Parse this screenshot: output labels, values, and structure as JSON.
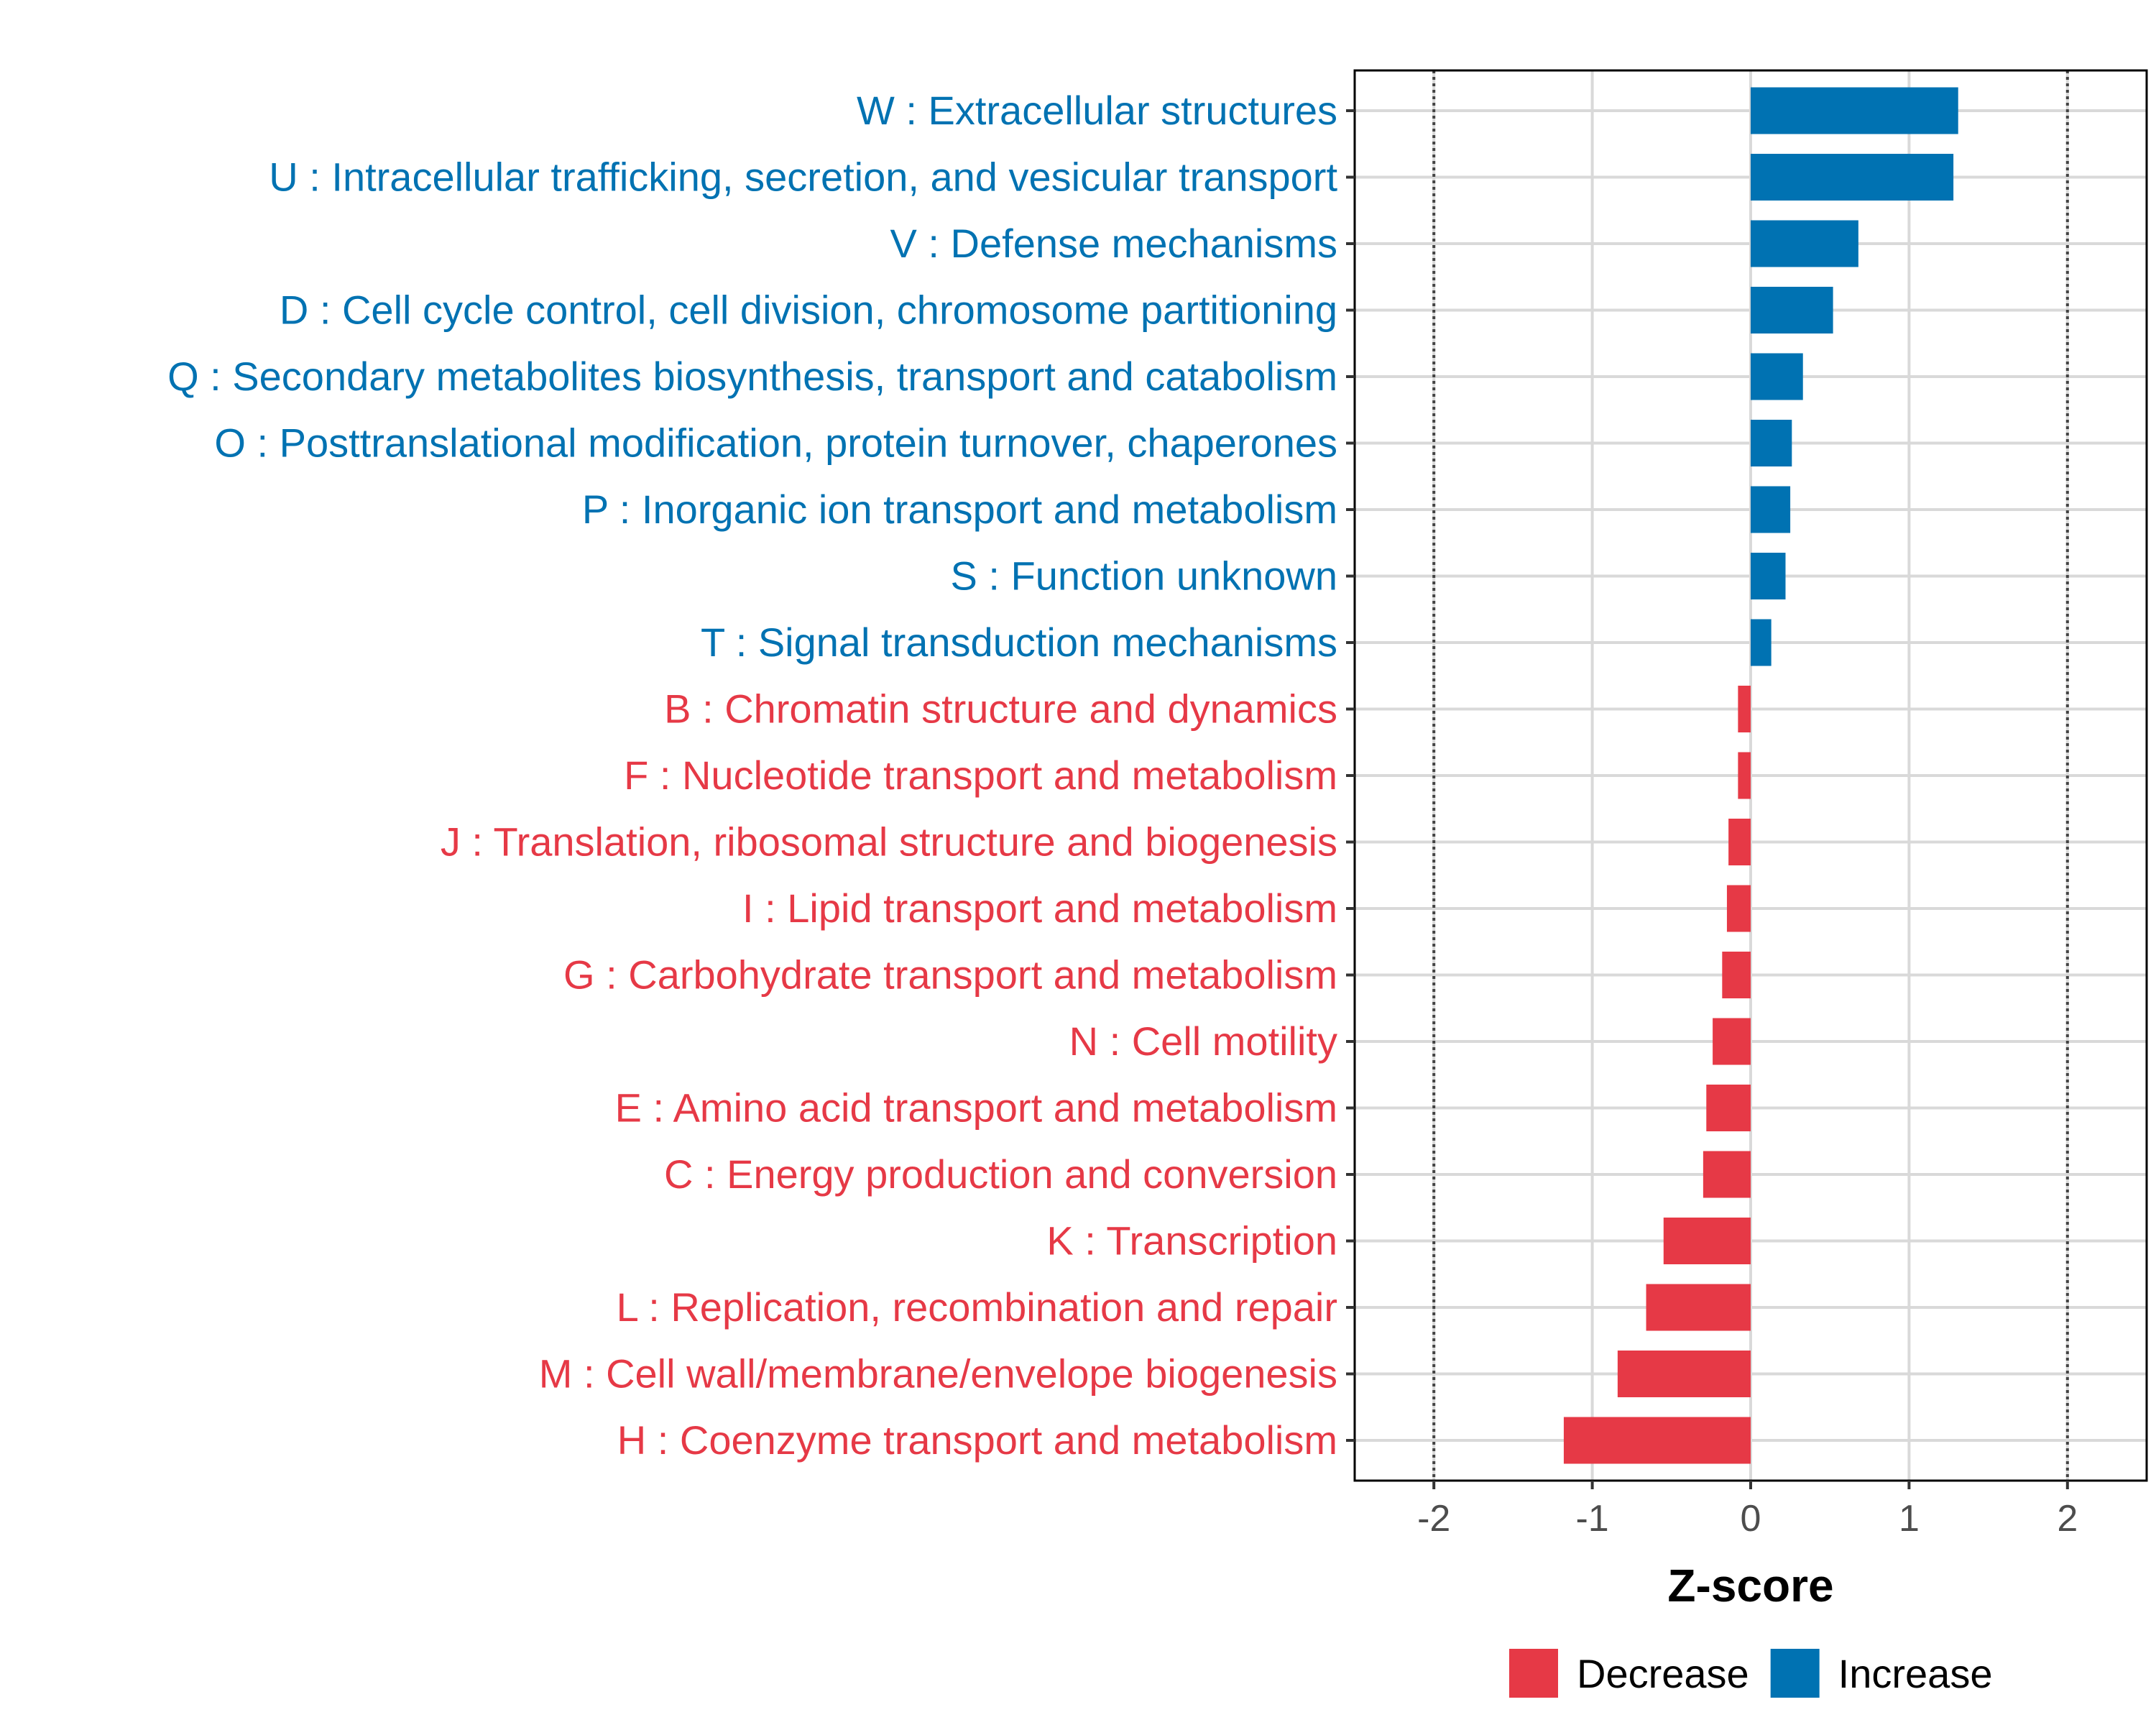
{
  "chart_data": {
    "type": "bar",
    "orientation": "horizontal",
    "title": "",
    "xlabel": "Z-score",
    "ylabel": "",
    "xlim": [
      -2.5,
      2.5
    ],
    "xticks": [
      -2,
      -1,
      0,
      1,
      2
    ],
    "xtick_labels": [
      "-2",
      "-1",
      "0",
      "1",
      "2"
    ],
    "reference_lines": [
      -2,
      2
    ],
    "grid": true,
    "legend_position": "bottom",
    "colors": {
      "Increase": "#0072b2",
      "Decrease": "#e63946"
    },
    "legend": [
      {
        "name": "Decrease"
      },
      {
        "name": "Increase"
      }
    ],
    "bars": [
      {
        "label": "W : Extracellular structures",
        "value": 1.31,
        "group": "Increase"
      },
      {
        "label": "U : Intracellular trafficking, secretion, and vesicular transport",
        "value": 1.28,
        "group": "Increase"
      },
      {
        "label": "V : Defense mechanisms",
        "value": 0.68,
        "group": "Increase"
      },
      {
        "label": "D : Cell cycle control, cell division, chromosome partitioning",
        "value": 0.52,
        "group": "Increase"
      },
      {
        "label": "Q : Secondary metabolites biosynthesis, transport and catabolism",
        "value": 0.33,
        "group": "Increase"
      },
      {
        "label": "O : Posttranslational modification, protein turnover, chaperones",
        "value": 0.26,
        "group": "Increase"
      },
      {
        "label": "P : Inorganic ion transport and metabolism",
        "value": 0.25,
        "group": "Increase"
      },
      {
        "label": "S : Function unknown",
        "value": 0.22,
        "group": "Increase"
      },
      {
        "label": "T : Signal transduction mechanisms",
        "value": 0.13,
        "group": "Increase"
      },
      {
        "label": "B : Chromatin structure and dynamics",
        "value": -0.08,
        "group": "Decrease"
      },
      {
        "label": "F : Nucleotide transport and metabolism",
        "value": -0.08,
        "group": "Decrease"
      },
      {
        "label": "J : Translation, ribosomal structure and biogenesis",
        "value": -0.14,
        "group": "Decrease"
      },
      {
        "label": "I : Lipid transport and metabolism",
        "value": -0.15,
        "group": "Decrease"
      },
      {
        "label": "G : Carbohydrate transport and metabolism",
        "value": -0.18,
        "group": "Decrease"
      },
      {
        "label": "N : Cell motility",
        "value": -0.24,
        "group": "Decrease"
      },
      {
        "label": "E : Amino acid transport and metabolism",
        "value": -0.28,
        "group": "Decrease"
      },
      {
        "label": "C : Energy production and conversion",
        "value": -0.3,
        "group": "Decrease"
      },
      {
        "label": "K : Transcription",
        "value": -0.55,
        "group": "Decrease"
      },
      {
        "label": "L : Replication, recombination and repair",
        "value": -0.66,
        "group": "Decrease"
      },
      {
        "label": "M : Cell wall/membrane/envelope biogenesis",
        "value": -0.84,
        "group": "Decrease"
      },
      {
        "label": "H : Coenzyme transport and metabolism",
        "value": -1.18,
        "group": "Decrease"
      }
    ]
  }
}
